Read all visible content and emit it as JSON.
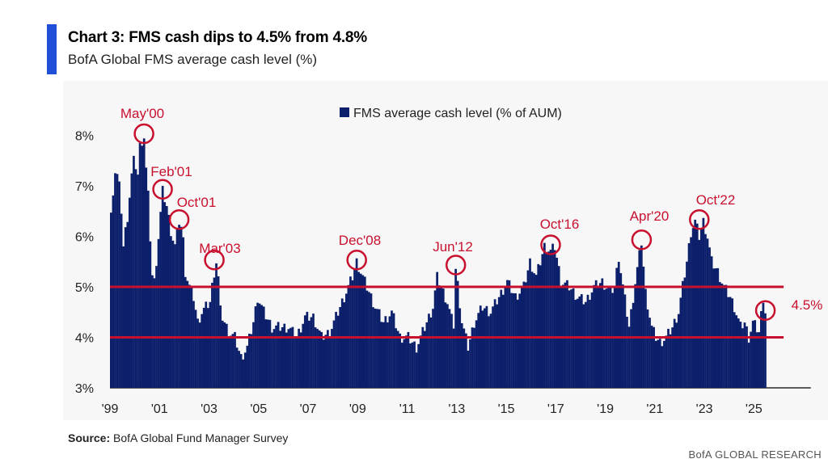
{
  "header": {
    "title": "Chart 3: FMS cash dips to 4.5% from 4.8%",
    "subtitle": "BofA Global FMS average cash level (%)",
    "accent_color": "#1f4fd8"
  },
  "footer": {
    "source_label": "Source:",
    "source_text": " BofA Global Fund Manager Survey",
    "brand": "BofA GLOBAL RESEARCH"
  },
  "chart_data": {
    "type": "bar",
    "title": "Chart 3: FMS cash dips to 4.5% from 4.8%",
    "subtitle": "BofA Global FMS average cash level (%)",
    "legend": "FMS average cash level (% of AUM)",
    "legend_position": "top-center",
    "bar_color": "#0c1f6b",
    "highlight_color": "#c8102e",
    "xlabel": "",
    "ylabel": "",
    "ylim": [
      3,
      8.6
    ],
    "xlim": [
      1999,
      2027.6
    ],
    "yticks": [
      3,
      4,
      5,
      6,
      7,
      8
    ],
    "ytick_labels": [
      "3%",
      "4%",
      "5%",
      "6%",
      "7%",
      "8%"
    ],
    "xticks": [
      1999,
      2001,
      2003,
      2005,
      2007,
      2009,
      2011,
      2013,
      2015,
      2017,
      2019,
      2021,
      2023,
      2025
    ],
    "xtick_labels": [
      "'99",
      "'01",
      "'03",
      "'05",
      "'07",
      "'09",
      "'11",
      "'13",
      "'15",
      "'17",
      "'19",
      "'21",
      "'23",
      "'25"
    ],
    "reference_lines": [
      {
        "y": 5.0
      },
      {
        "y": 4.0
      }
    ],
    "anchors": [
      [
        1999.0,
        6.4
      ],
      [
        1999.08,
        6.9
      ],
      [
        1999.17,
        7.3
      ],
      [
        1999.25,
        7.2
      ],
      [
        1999.33,
        7.0
      ],
      [
        1999.42,
        6.5
      ],
      [
        1999.5,
        5.8
      ],
      [
        1999.58,
        6.1
      ],
      [
        1999.67,
        6.4
      ],
      [
        1999.75,
        6.8
      ],
      [
        1999.83,
        7.2
      ],
      [
        1999.92,
        7.5
      ],
      [
        2000.0,
        7.4
      ],
      [
        2000.08,
        7.2
      ],
      [
        2000.17,
        7.8
      ],
      [
        2000.25,
        7.9
      ],
      [
        2000.33,
        8.0
      ],
      [
        2000.42,
        7.3
      ],
      [
        2000.5,
        6.8
      ],
      [
        2000.58,
        6.0
      ],
      [
        2000.67,
        5.2
      ],
      [
        2000.75,
        5.1
      ],
      [
        2000.83,
        5.5
      ],
      [
        2000.92,
        6.0
      ],
      [
        2001.08,
        6.9
      ],
      [
        2001.25,
        6.6
      ],
      [
        2001.42,
        6.1
      ],
      [
        2001.58,
        5.8
      ],
      [
        2001.75,
        6.3
      ],
      [
        2001.83,
        6.2
      ],
      [
        2001.92,
        5.9
      ],
      [
        2002.0,
        5.3
      ],
      [
        2002.17,
        5.0
      ],
      [
        2002.33,
        4.8
      ],
      [
        2002.5,
        4.3
      ],
      [
        2002.67,
        4.5
      ],
      [
        2002.83,
        4.6
      ],
      [
        2003.0,
        4.7
      ],
      [
        2003.08,
        5.0
      ],
      [
        2003.17,
        5.3
      ],
      [
        2003.25,
        5.5
      ],
      [
        2003.33,
        5.2
      ],
      [
        2003.42,
        4.5
      ],
      [
        2003.58,
        4.3
      ],
      [
        2003.75,
        4.1
      ],
      [
        2004.0,
        4.0
      ],
      [
        2004.25,
        3.6
      ],
      [
        2004.5,
        3.8
      ],
      [
        2004.75,
        4.3
      ],
      [
        2004.92,
        4.8
      ],
      [
        2005.17,
        4.5
      ],
      [
        2005.5,
        4.2
      ],
      [
        2005.83,
        4.2
      ],
      [
        2006.17,
        4.2
      ],
      [
        2006.5,
        4.0
      ],
      [
        2006.83,
        4.4
      ],
      [
        2007.17,
        4.4
      ],
      [
        2007.5,
        4.0
      ],
      [
        2007.83,
        4.1
      ],
      [
        2008.0,
        4.3
      ],
      [
        2008.25,
        4.6
      ],
      [
        2008.5,
        4.9
      ],
      [
        2008.75,
        5.2
      ],
      [
        2008.92,
        5.5
      ],
      [
        2009.08,
        5.3
      ],
      [
        2009.33,
        5.0
      ],
      [
        2009.67,
        4.6
      ],
      [
        2010.0,
        4.3
      ],
      [
        2010.33,
        4.5
      ],
      [
        2010.67,
        4.0
      ],
      [
        2011.0,
        4.0
      ],
      [
        2011.33,
        3.8
      ],
      [
        2011.67,
        4.2
      ],
      [
        2012.0,
        4.6
      ],
      [
        2012.17,
        5.2
      ],
      [
        2012.33,
        5.0
      ],
      [
        2012.58,
        4.7
      ],
      [
        2012.83,
        4.2
      ],
      [
        2012.92,
        5.4
      ],
      [
        2013.17,
        4.3
      ],
      [
        2013.42,
        3.8
      ],
      [
        2013.67,
        4.3
      ],
      [
        2014.0,
        4.6
      ],
      [
        2014.33,
        4.5
      ],
      [
        2014.67,
        4.8
      ],
      [
        2015.0,
        5.1
      ],
      [
        2015.33,
        4.8
      ],
      [
        2015.67,
        5.0
      ],
      [
        2015.92,
        5.5
      ],
      [
        2016.17,
        5.2
      ],
      [
        2016.5,
        5.8
      ],
      [
        2016.75,
        5.7
      ],
      [
        2016.92,
        5.8
      ],
      [
        2017.17,
        5.1
      ],
      [
        2017.5,
        5.0
      ],
      [
        2017.83,
        4.8
      ],
      [
        2018.17,
        4.7
      ],
      [
        2018.5,
        5.0
      ],
      [
        2018.83,
        5.1
      ],
      [
        2019.17,
        4.9
      ],
      [
        2019.33,
        5.0
      ],
      [
        2019.5,
        5.6
      ],
      [
        2019.67,
        5.0
      ],
      [
        2019.92,
        4.2
      ],
      [
        2020.17,
        5.1
      ],
      [
        2020.42,
        5.9
      ],
      [
        2020.58,
        4.9
      ],
      [
        2020.83,
        4.2
      ],
      [
        2021.0,
        4.0
      ],
      [
        2021.17,
        3.9
      ],
      [
        2021.42,
        4.0
      ],
      [
        2021.67,
        4.2
      ],
      [
        2021.92,
        4.5
      ],
      [
        2022.08,
        5.0
      ],
      [
        2022.25,
        5.5
      ],
      [
        2022.42,
        6.1
      ],
      [
        2022.58,
        6.3
      ],
      [
        2022.75,
        6.0
      ],
      [
        2022.92,
        6.3
      ],
      [
        2023.08,
        6.0
      ],
      [
        2023.25,
        5.5
      ],
      [
        2023.5,
        5.3
      ],
      [
        2023.75,
        5.0
      ],
      [
        2024.0,
        4.8
      ],
      [
        2024.17,
        4.6
      ],
      [
        2024.42,
        4.2
      ],
      [
        2024.58,
        4.3
      ],
      [
        2024.75,
        4.0
      ],
      [
        2024.92,
        4.3
      ],
      [
        2025.17,
        4.1
      ],
      [
        2025.33,
        4.8
      ],
      [
        2025.42,
        4.5
      ]
    ],
    "annotations": [
      {
        "label": "May'00",
        "x": 2000.33,
        "y": 8.0
      },
      {
        "label": "Feb'01",
        "x": 2001.08,
        "y": 6.9
      },
      {
        "label": "Oct'01",
        "x": 2001.75,
        "y": 6.3
      },
      {
        "label": "Mar'03",
        "x": 2003.17,
        "y": 5.5
      },
      {
        "label": "Dec'08",
        "x": 2008.92,
        "y": 5.5
      },
      {
        "label": "Jun'12",
        "x": 2012.92,
        "y": 5.4
      },
      {
        "label": "Oct'16",
        "x": 2016.75,
        "y": 5.8
      },
      {
        "label": "Apr'20",
        "x": 2020.42,
        "y": 5.9
      },
      {
        "label": "Oct'22",
        "x": 2022.75,
        "y": 6.3
      },
      {
        "label": "4.5%",
        "x": 2025.42,
        "y": 4.5
      }
    ]
  }
}
